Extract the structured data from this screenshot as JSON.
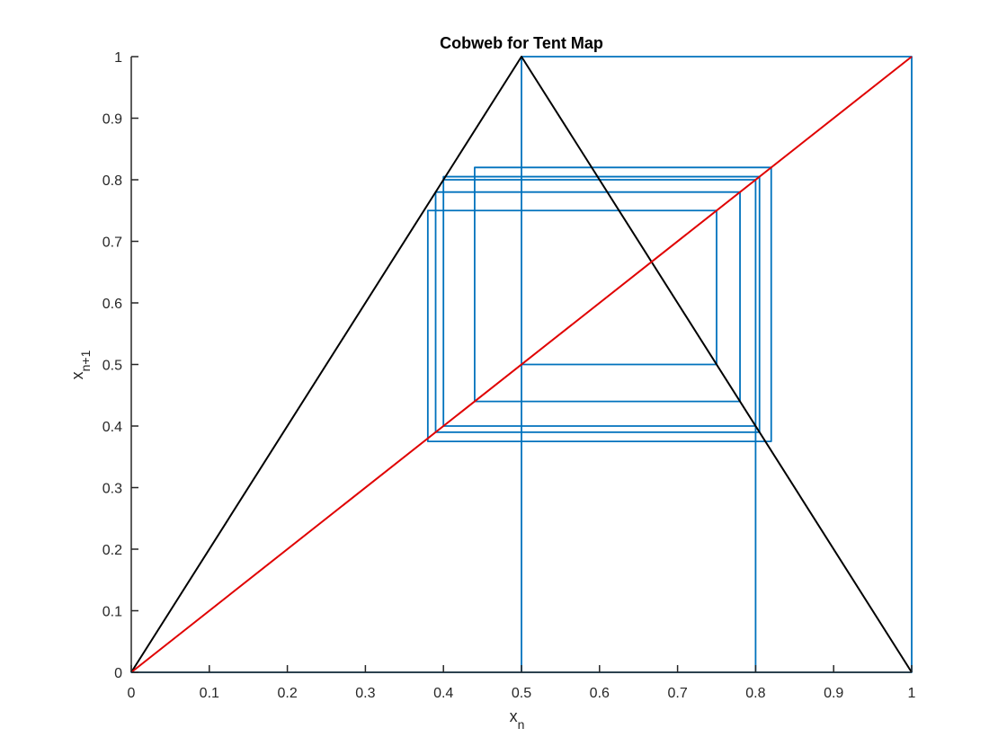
{
  "chart_data": {
    "type": "line",
    "title": "Cobweb for Tent Map",
    "xlabel": "x",
    "xlabel_sub": "n",
    "ylabel": "x",
    "ylabel_sub": "n+1",
    "xlim": [
      0,
      1
    ],
    "ylim": [
      0,
      1
    ],
    "xticks": [
      0,
      0.1,
      0.2,
      0.3,
      0.4,
      0.5,
      0.6,
      0.7,
      0.8,
      0.9,
      1
    ],
    "xtick_labels": [
      "0",
      "0.1",
      "0.2",
      "0.3",
      "0.4",
      "0.5",
      "0.6",
      "0.7",
      "0.8",
      "0.9",
      "1"
    ],
    "yticks": [
      0,
      0.1,
      0.2,
      0.3,
      0.4,
      0.5,
      0.6,
      0.7,
      0.8,
      0.9,
      1
    ],
    "ytick_labels": [
      "0",
      "0.1",
      "0.2",
      "0.3",
      "0.4",
      "0.5",
      "0.6",
      "0.7",
      "0.8",
      "0.9",
      "1"
    ],
    "grid": false,
    "series": [
      {
        "kind": "tent-map",
        "color": "#000000",
        "x": [
          0,
          0.5,
          1
        ],
        "y": [
          0,
          1,
          0
        ]
      },
      {
        "kind": "identity-line",
        "color": "#e00000",
        "x": [
          0,
          1
        ],
        "y": [
          0,
          1
        ]
      },
      {
        "kind": "cobweb",
        "color": "#0072bd",
        "x": [
          0.5,
          0.5,
          1,
          1,
          0,
          0,
          0.8,
          0.8,
          0.4,
          0.4,
          0.8,
          0.8,
          0.4,
          0.4,
          0.8,
          0.8,
          0.4,
          0.4,
          0.8,
          0.8,
          0.4,
          0.4,
          0.8,
          0.8,
          0.4,
          0.4,
          0.805,
          0.805,
          0.39,
          0.39,
          0.78,
          0.78,
          0.44,
          0.44,
          0.82,
          0.82,
          0.38,
          0.38,
          0.75,
          0.75,
          0.5,
          0.5,
          1,
          1,
          0
        ],
        "y": [
          0,
          1,
          1,
          0,
          0,
          0,
          0,
          0.4,
          0.4,
          0.8,
          0.8,
          0.4,
          0.4,
          0.8,
          0.8,
          0.4,
          0.4,
          0.8,
          0.8,
          0.4,
          0.4,
          0.8,
          0.8,
          0.4,
          0.4,
          0.805,
          0.805,
          0.39,
          0.39,
          0.78,
          0.78,
          0.44,
          0.44,
          0.82,
          0.82,
          0.375,
          0.375,
          0.75,
          0.75,
          0.5,
          0.5,
          1,
          1,
          0,
          0
        ]
      }
    ]
  }
}
